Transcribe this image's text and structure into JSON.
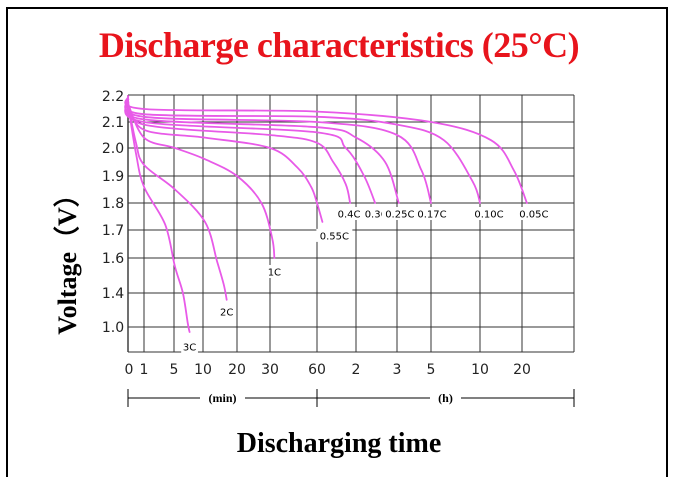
{
  "chart_data": {
    "type": "line",
    "title": "Discharge characteristics (25°C)",
    "xlabel": "Discharging time",
    "ylabel": "Voltage（V）",
    "x_ticks": [
      "0",
      "1",
      "5",
      "10",
      "20",
      "30",
      "60",
      "2",
      "3",
      "5",
      "10",
      "20"
    ],
    "x_unit_segments": [
      {
        "label": "(min)",
        "from": "0",
        "to": "60"
      },
      {
        "label": "(h)",
        "from": "60",
        "to": "20"
      }
    ],
    "y_ticks": [
      "2.2",
      "2.1",
      "2.0",
      "1.9",
      "1.8",
      "1.7",
      "1.6",
      "1.4",
      "1.0"
    ],
    "grid": true,
    "line_color": "#e85ae8",
    "series": [
      {
        "name": "3C",
        "points": [
          [
            0,
            2.17
          ],
          [
            0.5,
            1.98
          ],
          [
            1,
            1.86
          ],
          [
            3,
            1.72
          ],
          [
            5,
            1.55
          ],
          [
            6,
            1.4
          ],
          [
            6.7,
            1.05
          ],
          [
            7,
            0.98
          ]
        ]
      },
      {
        "name": "2C",
        "points": [
          [
            0,
            2.17
          ],
          [
            0.5,
            2.02
          ],
          [
            1,
            1.94
          ],
          [
            5,
            1.85
          ],
          [
            10,
            1.73
          ],
          [
            13,
            1.58
          ],
          [
            15,
            1.45
          ],
          [
            16,
            1.32
          ]
        ]
      },
      {
        "name": "1C",
        "points": [
          [
            0,
            2.17
          ],
          [
            1,
            2.04
          ],
          [
            5,
            2.0
          ],
          [
            10,
            1.96
          ],
          [
            20,
            1.9
          ],
          [
            27,
            1.8
          ],
          [
            31,
            1.67
          ],
          [
            32,
            1.6
          ]
        ]
      },
      {
        "name": "0.55C",
        "points": [
          [
            0,
            2.17
          ],
          [
            1,
            2.07
          ],
          [
            10,
            2.04
          ],
          [
            30,
            2.0
          ],
          [
            45,
            1.93
          ],
          [
            55,
            1.86
          ],
          [
            60,
            1.8
          ],
          [
            66,
            1.73
          ]
        ]
      },
      {
        "name": "0.4C",
        "points": [
          [
            0,
            2.18
          ],
          [
            1,
            2.09
          ],
          [
            30,
            2.05
          ],
          [
            60,
            2.02
          ],
          [
            80,
            1.95
          ],
          [
            100,
            1.87
          ],
          [
            108,
            1.8
          ]
        ]
      },
      {
        "name": "0.3C",
        "points": [
          [
            0,
            2.18
          ],
          [
            1,
            2.1
          ],
          [
            60,
            2.06
          ],
          [
            100,
            2.0
          ],
          [
            130,
            1.9
          ],
          [
            145,
            1.8
          ]
        ]
      },
      {
        "name": "0.25C",
        "points": [
          [
            0,
            2.18
          ],
          [
            1,
            2.11
          ],
          [
            60,
            2.08
          ],
          [
            120,
            2.04
          ],
          [
            160,
            1.95
          ],
          [
            185,
            1.8
          ]
        ]
      },
      {
        "name": "0.17C",
        "points": [
          [
            0,
            2.19
          ],
          [
            1,
            2.12
          ],
          [
            60,
            2.1
          ],
          [
            180,
            2.05
          ],
          [
            260,
            1.92
          ],
          [
            300,
            1.8
          ]
        ]
      },
      {
        "name": "0.10C",
        "points": [
          [
            0,
            2.19
          ],
          [
            1,
            2.13
          ],
          [
            60,
            2.12
          ],
          [
            180,
            2.09
          ],
          [
            360,
            2.03
          ],
          [
            540,
            1.88
          ],
          [
            600,
            1.8
          ]
        ]
      },
      {
        "name": "0.05C",
        "points": [
          [
            0,
            2.2
          ],
          [
            1,
            2.15
          ],
          [
            60,
            2.14
          ],
          [
            300,
            2.1
          ],
          [
            720,
            2.03
          ],
          [
            1050,
            1.92
          ],
          [
            1300,
            1.8
          ]
        ]
      }
    ]
  }
}
